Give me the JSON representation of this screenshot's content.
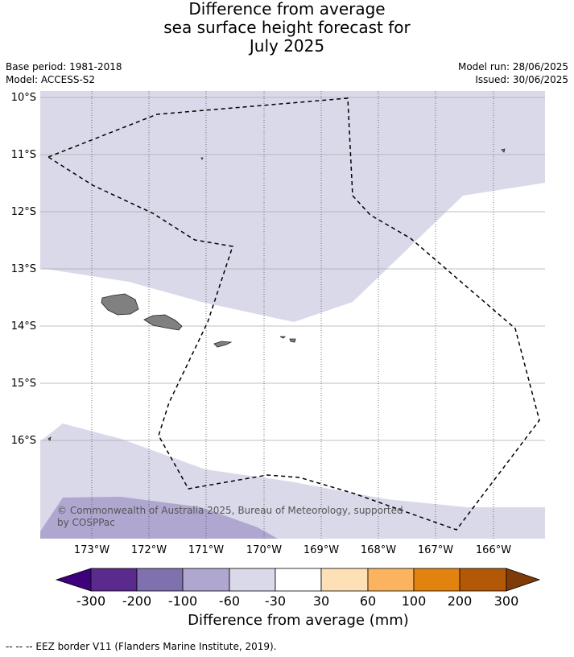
{
  "title": {
    "line1": "Difference from average",
    "line2": "sea surface height forecast for",
    "line3": "July 2025"
  },
  "meta": {
    "base_period": "Base period: 1981-2018",
    "model": "Model: ACCESS-S2",
    "model_run": "Model run: 28/06/2025",
    "issued": "Issued: 30/06/2025"
  },
  "map": {
    "lat_labels": [
      "10°S",
      "11°S",
      "12°S",
      "13°S",
      "14°S",
      "15°S",
      "16°S"
    ],
    "lon_labels": [
      "173°W",
      "172°W",
      "171°W",
      "170°W",
      "169°W",
      "168°W",
      "167°W",
      "166°W"
    ],
    "copyright_line1": "© Commonwealth of Australia 2025, Bureau of Meteorology, supported",
    "copyright_line2": "by COSPPac",
    "colors": {
      "ocean_slight_negative": "#d9d9ea",
      "ocean_negative": "#afa7d0",
      "land": "#808080",
      "border": "#000000"
    }
  },
  "colorbar": {
    "title": "Difference from average (mm)",
    "ticks": [
      "-300",
      "-200",
      "-100",
      "-60",
      "-30",
      "30",
      "60",
      "100",
      "200",
      "300"
    ],
    "colors": [
      "#3f007d",
      "#5a2a8c",
      "#7f70ae",
      "#afa7d0",
      "#d9d9ea",
      "#ffffff",
      "#fde0b6",
      "#fbb35f",
      "#e2820f",
      "#b35806",
      "#7f3b08"
    ]
  },
  "footnote": "--  --  -- EEZ border V11 (Flanders Marine Institute, 2019)."
}
